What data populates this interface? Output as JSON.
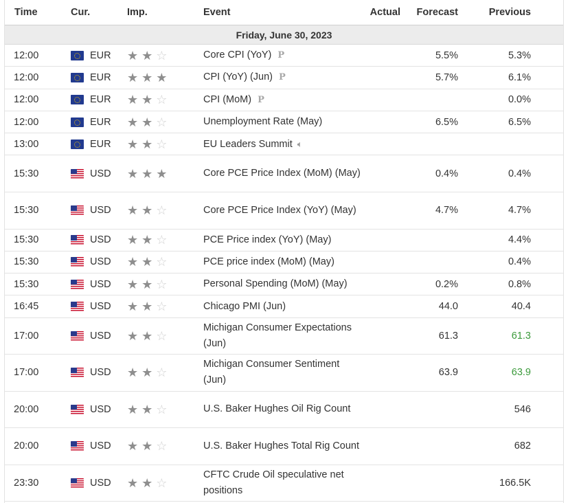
{
  "header": {
    "time": "Time",
    "currency": "Cur.",
    "importance": "Imp.",
    "event": "Event",
    "actual": "Actual",
    "forecast": "Forecast",
    "previous": "Previous"
  },
  "date_label": "Friday, June 30, 2023",
  "colors": {
    "accent_green": "#3b9a3b",
    "star_on": "#8e8e8e",
    "star_off": "#cfcfcf"
  },
  "events": [
    {
      "time": "12:00",
      "currency": "EUR",
      "flag": "eu-flag-icon",
      "importance": 2,
      "event": "Core CPI (YoY)",
      "marker": "P",
      "actual": "",
      "forecast": "5.5%",
      "previous": "5.3%",
      "previous_color": "",
      "lines": 1
    },
    {
      "time": "12:00",
      "currency": "EUR",
      "flag": "eu-flag-icon",
      "importance": 3,
      "event": "CPI (YoY) (Jun)",
      "marker": "P",
      "actual": "",
      "forecast": "5.7%",
      "previous": "6.1%",
      "previous_color": "",
      "lines": 1
    },
    {
      "time": "12:00",
      "currency": "EUR",
      "flag": "eu-flag-icon",
      "importance": 2,
      "event": "CPI (MoM)",
      "marker": "P",
      "actual": "",
      "forecast": "",
      "previous": "0.0%",
      "previous_color": "",
      "lines": 1
    },
    {
      "time": "12:00",
      "currency": "EUR",
      "flag": "eu-flag-icon",
      "importance": 2,
      "event": "Unemployment Rate (May)",
      "marker": "",
      "actual": "",
      "forecast": "6.5%",
      "previous": "6.5%",
      "previous_color": "",
      "lines": 1
    },
    {
      "time": "13:00",
      "currency": "EUR",
      "flag": "eu-flag-icon",
      "importance": 2,
      "event": "EU Leaders Summit",
      "marker": "speaker",
      "actual": "",
      "forecast": "",
      "previous": "",
      "previous_color": "",
      "lines": 1
    },
    {
      "time": "15:30",
      "currency": "USD",
      "flag": "us-flag-icon",
      "importance": 3,
      "event": "Core PCE Price Index (MoM) (May)",
      "marker": "",
      "actual": "",
      "forecast": "0.4%",
      "previous": "0.4%",
      "previous_color": "",
      "lines": 2
    },
    {
      "time": "15:30",
      "currency": "USD",
      "flag": "us-flag-icon",
      "importance": 2,
      "event": "Core PCE Price Index (YoY) (May)",
      "marker": "",
      "actual": "",
      "forecast": "4.7%",
      "previous": "4.7%",
      "previous_color": "",
      "lines": 2
    },
    {
      "time": "15:30",
      "currency": "USD",
      "flag": "us-flag-icon",
      "importance": 2,
      "event": "PCE Price index (YoY) (May)",
      "marker": "",
      "actual": "",
      "forecast": "",
      "previous": "4.4%",
      "previous_color": "",
      "lines": 1
    },
    {
      "time": "15:30",
      "currency": "USD",
      "flag": "us-flag-icon",
      "importance": 2,
      "event": "PCE price index (MoM) (May)",
      "marker": "",
      "actual": "",
      "forecast": "",
      "previous": "0.4%",
      "previous_color": "",
      "lines": 1
    },
    {
      "time": "15:30",
      "currency": "USD",
      "flag": "us-flag-icon",
      "importance": 2,
      "event": "Personal Spending (MoM) (May)",
      "marker": "",
      "actual": "",
      "forecast": "0.2%",
      "previous": "0.8%",
      "previous_color": "",
      "lines": 1
    },
    {
      "time": "16:45",
      "currency": "USD",
      "flag": "us-flag-icon",
      "importance": 2,
      "event": "Chicago PMI (Jun)",
      "marker": "",
      "actual": "",
      "forecast": "44.0",
      "previous": "40.4",
      "previous_color": "",
      "lines": 1
    },
    {
      "time": "17:00",
      "currency": "USD",
      "flag": "us-flag-icon",
      "importance": 2,
      "event": "Michigan Consumer Expectations (Jun)",
      "marker": "",
      "actual": "",
      "forecast": "61.3",
      "previous": "61.3",
      "previous_color": "#3b9a3b",
      "lines": 2
    },
    {
      "time": "17:00",
      "currency": "USD",
      "flag": "us-flag-icon",
      "importance": 2,
      "event": "Michigan Consumer Sentiment (Jun)",
      "marker": "",
      "actual": "",
      "forecast": "63.9",
      "previous": "63.9",
      "previous_color": "#3b9a3b",
      "lines": 2
    },
    {
      "time": "20:00",
      "currency": "USD",
      "flag": "us-flag-icon",
      "importance": 2,
      "event": "U.S. Baker Hughes Oil Rig Count",
      "marker": "",
      "actual": "",
      "forecast": "",
      "previous": "546",
      "previous_color": "",
      "lines": 2
    },
    {
      "time": "20:00",
      "currency": "USD",
      "flag": "us-flag-icon",
      "importance": 2,
      "event": "U.S. Baker Hughes Total Rig Count",
      "marker": "",
      "actual": "",
      "forecast": "",
      "previous": "682",
      "previous_color": "",
      "lines": 2
    },
    {
      "time": "23:30",
      "currency": "USD",
      "flag": "us-flag-icon",
      "importance": 2,
      "event": "CFTC Crude Oil speculative net positions",
      "marker": "",
      "actual": "",
      "forecast": "",
      "previous": "166.5K",
      "previous_color": "",
      "lines": 2
    }
  ]
}
